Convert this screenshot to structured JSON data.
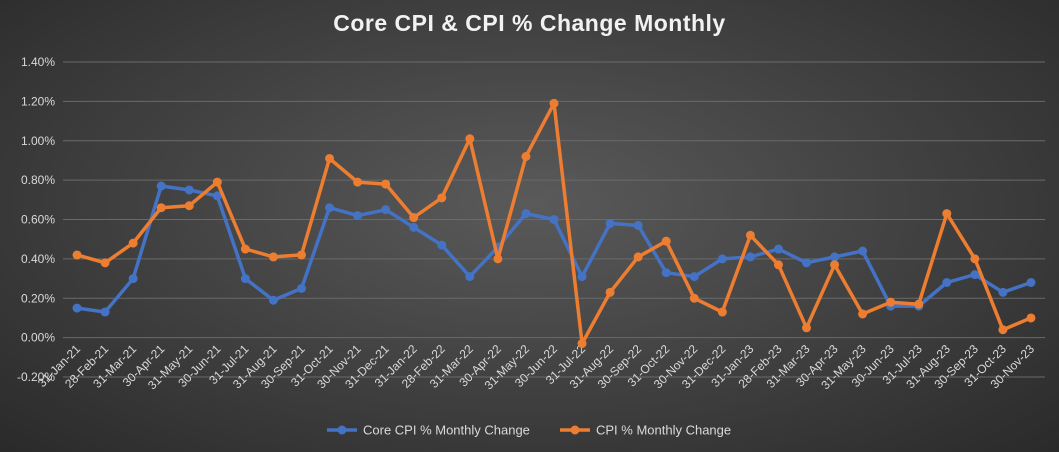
{
  "chart_data": {
    "type": "line",
    "title": "Core CPI & CPI % Change Monthly",
    "xlabel": "",
    "ylabel": "",
    "ylim": [
      -0.2,
      1.4
    ],
    "yticks": [
      "-0.20%",
      "0.00%",
      "0.20%",
      "0.40%",
      "0.60%",
      "0.80%",
      "1.00%",
      "1.20%",
      "1.40%"
    ],
    "grid": true,
    "legend_position": "bottom",
    "categories": [
      "31-Jan-21",
      "28-Feb-21",
      "31-Mar-21",
      "30-Apr-21",
      "31-May-21",
      "30-Jun-21",
      "31-Jul-21",
      "31-Aug-21",
      "30-Sep-21",
      "31-Oct-21",
      "30-Nov-21",
      "31-Dec-21",
      "31-Jan-22",
      "28-Feb-22",
      "31-Mar-22",
      "30-Apr-22",
      "31-May-22",
      "30-Jun-22",
      "31-Jul-22",
      "31-Aug-22",
      "30-Sep-22",
      "31-Oct-22",
      "30-Nov-22",
      "31-Dec-22",
      "31-Jan-23",
      "28-Feb-23",
      "31-Mar-23",
      "30-Apr-23",
      "31-May-23",
      "30-Jun-23",
      "31-Jul-23",
      "31-Aug-23",
      "30-Sep-23",
      "31-Oct-23",
      "30-Nov-23"
    ],
    "series": [
      {
        "name": "Core CPI % Monthly Change",
        "color": "#4472c4",
        "values": [
          0.15,
          0.13,
          0.3,
          0.77,
          0.75,
          0.72,
          0.3,
          0.19,
          0.25,
          0.66,
          0.62,
          0.65,
          0.56,
          0.47,
          0.31,
          0.46,
          0.63,
          0.6,
          0.31,
          0.58,
          0.57,
          0.33,
          0.31,
          0.4,
          0.41,
          0.45,
          0.38,
          0.41,
          0.44,
          0.16,
          0.16,
          0.28,
          0.32,
          0.23,
          0.28
        ]
      },
      {
        "name": "CPI % Monthly Change",
        "color": "#ed7d31",
        "values": [
          0.42,
          0.38,
          0.48,
          0.66,
          0.67,
          0.79,
          0.45,
          0.41,
          0.42,
          0.91,
          0.79,
          0.78,
          0.61,
          0.71,
          1.01,
          0.4,
          0.92,
          1.19,
          -0.03,
          0.23,
          0.41,
          0.49,
          0.2,
          0.13,
          0.52,
          0.37,
          0.05,
          0.37,
          0.12,
          0.18,
          0.17,
          0.63,
          0.4,
          0.04,
          0.1
        ]
      }
    ]
  }
}
